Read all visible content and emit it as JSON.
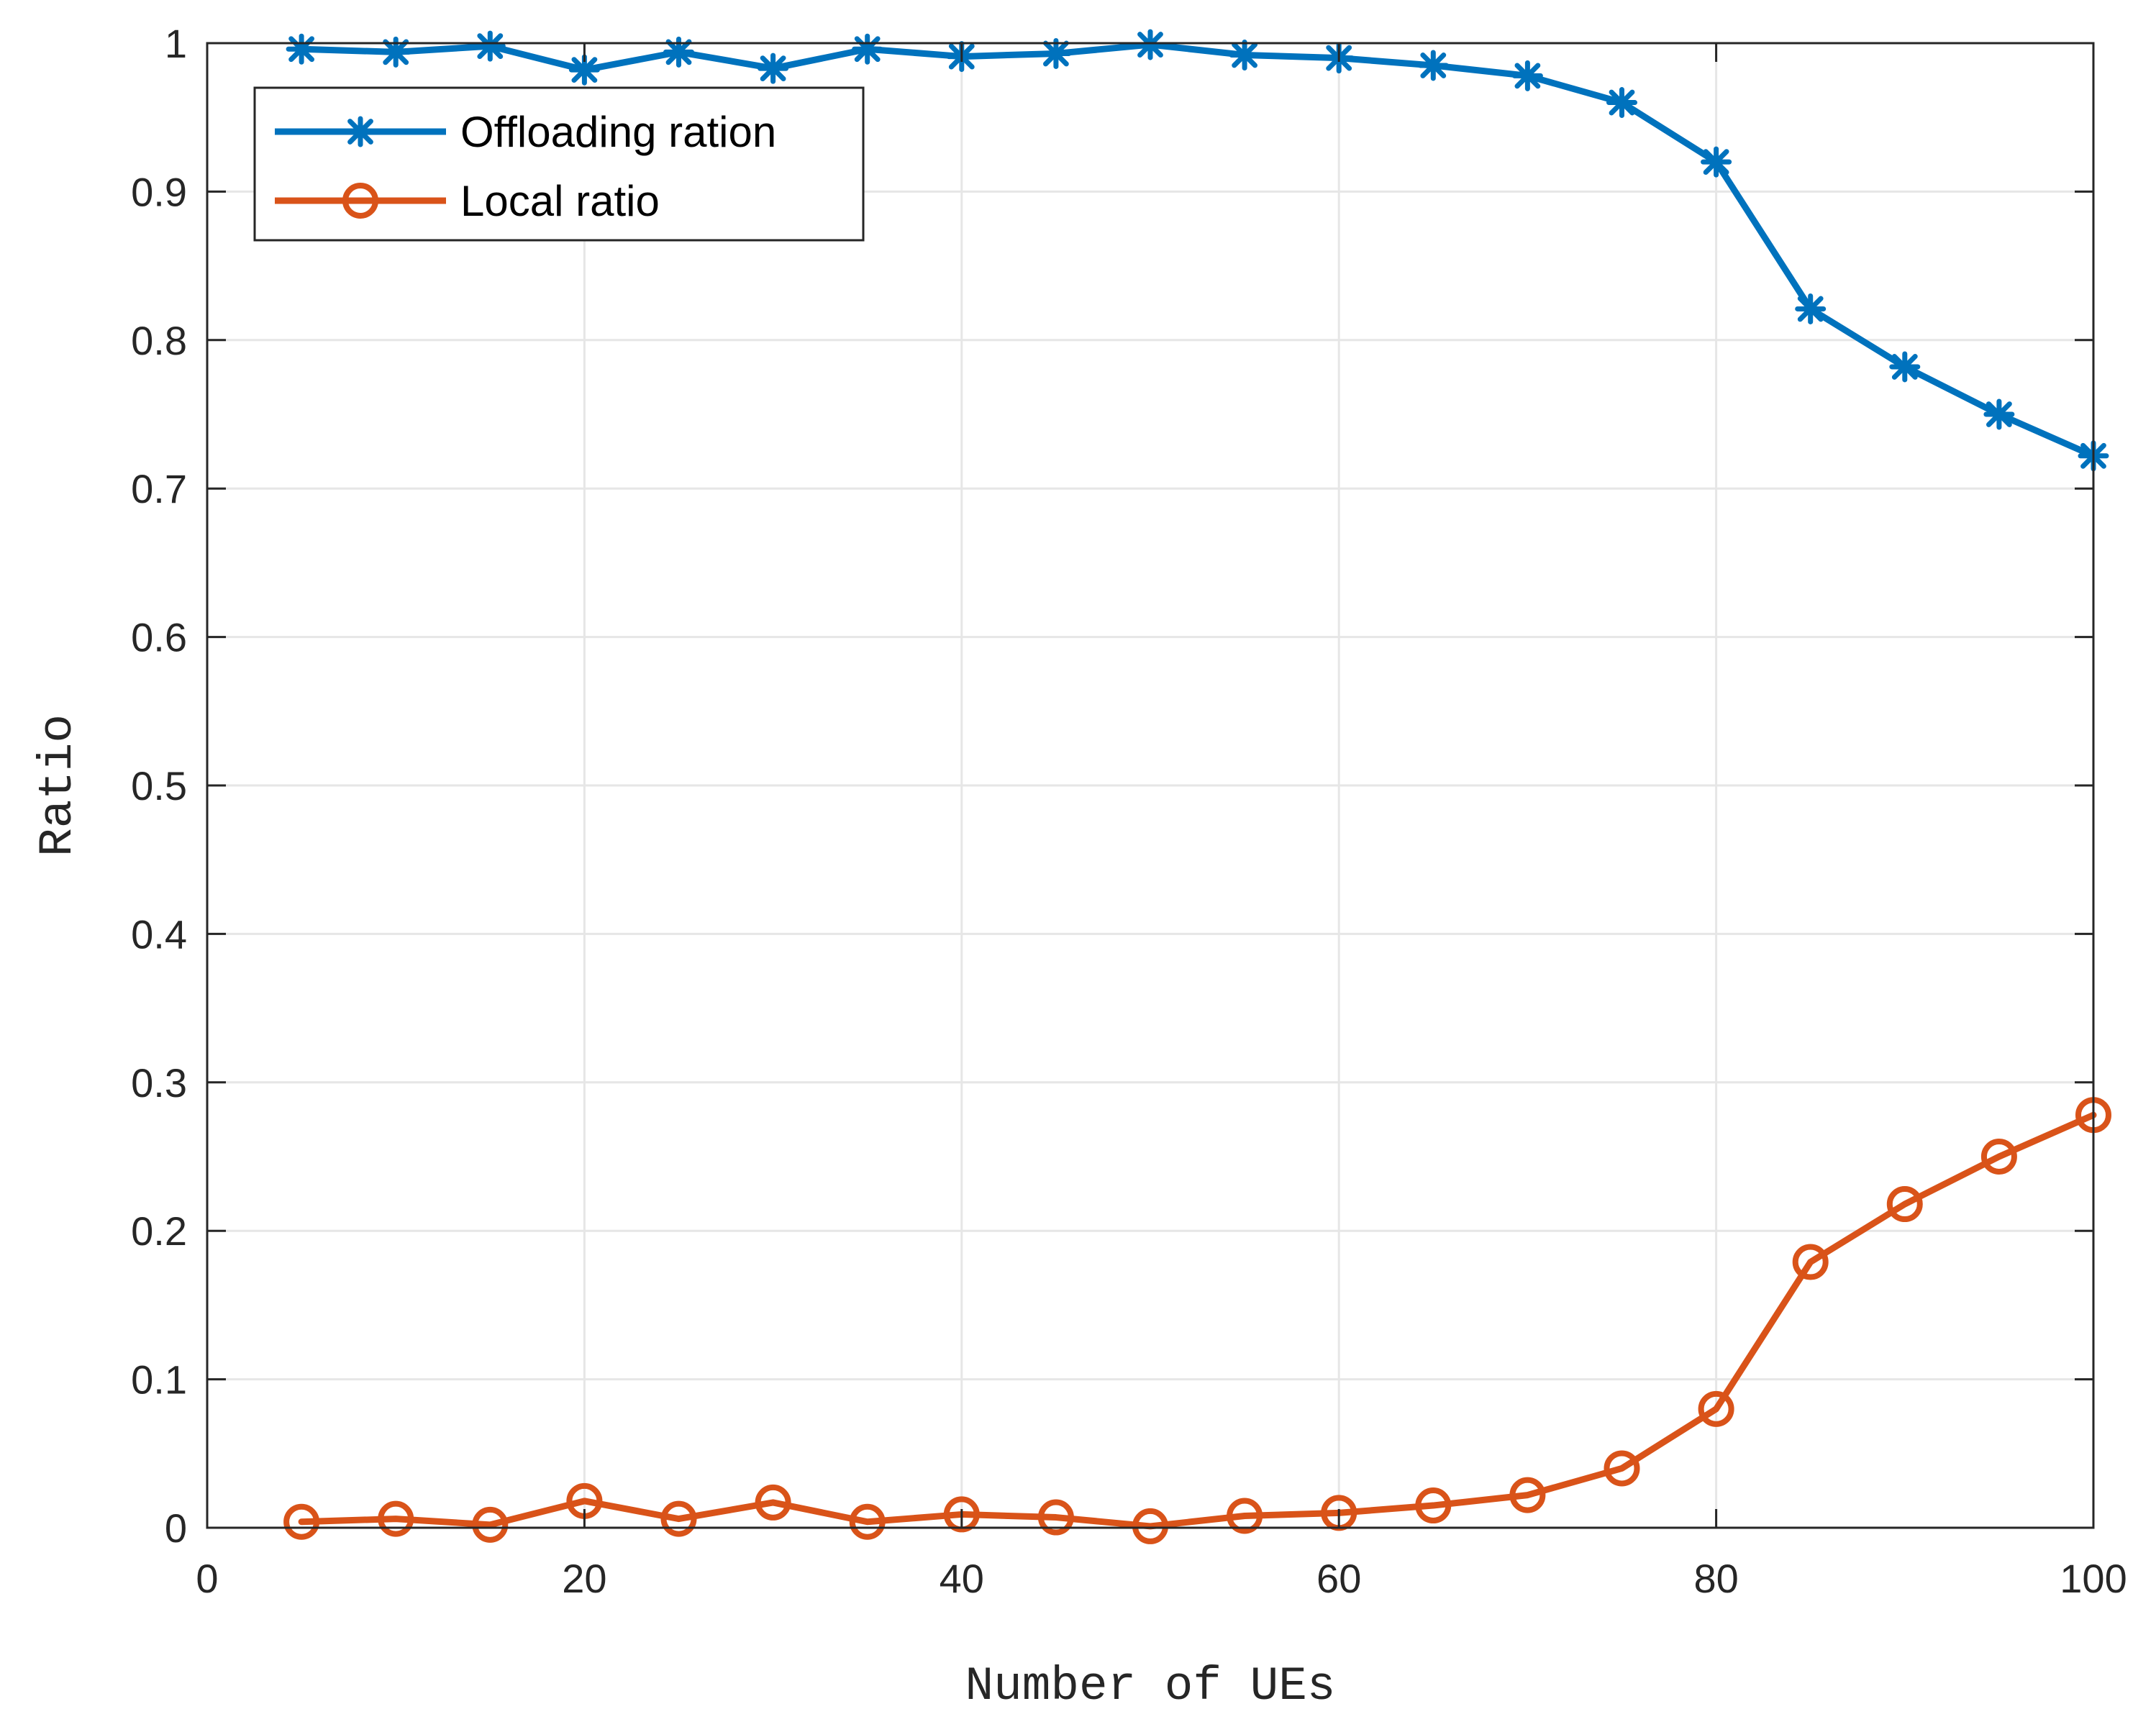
{
  "chart_data": {
    "type": "line",
    "title": "",
    "xlabel": "Number of UEs",
    "ylabel": "Ratio",
    "xlim": [
      0,
      100
    ],
    "ylim": [
      0,
      1
    ],
    "xticks": [
      "0",
      "20",
      "40",
      "60",
      "80",
      "100"
    ],
    "yticks": [
      "0",
      "0.1",
      "0.2",
      "0.3",
      "0.4",
      "0.5",
      "0.6",
      "0.7",
      "0.8",
      "0.9",
      "1"
    ],
    "grid": true,
    "legend_position": "top-left",
    "x": [
      5,
      10,
      15,
      20,
      25,
      30,
      35,
      40,
      45,
      50,
      55,
      60,
      65,
      70,
      75,
      80,
      85,
      90,
      95,
      100
    ],
    "series": [
      {
        "name": "Offloading ration",
        "color": "#0072BD",
        "marker": "asterisk",
        "values": [
          0.996,
          0.994,
          0.998,
          0.982,
          0.994,
          0.983,
          0.996,
          0.991,
          0.993,
          0.999,
          0.992,
          0.99,
          0.985,
          0.978,
          0.96,
          0.92,
          0.821,
          0.782,
          0.75,
          0.722
        ]
      },
      {
        "name": "Local ratio",
        "color": "#D95319",
        "marker": "circle",
        "values": [
          0.004,
          0.006,
          0.002,
          0.018,
          0.006,
          0.017,
          0.004,
          0.009,
          0.007,
          0.001,
          0.008,
          0.01,
          0.015,
          0.022,
          0.04,
          0.08,
          0.179,
          0.218,
          0.25,
          0.278
        ]
      }
    ]
  }
}
